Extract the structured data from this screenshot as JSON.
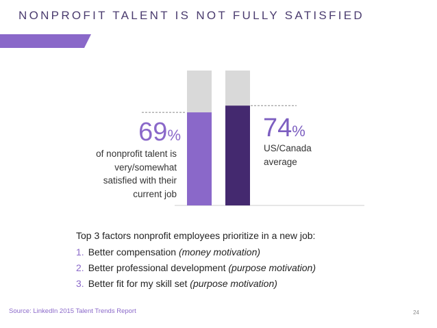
{
  "title": "NONPROFIT TALENT IS NOT FULLY SATISFIED",
  "colors": {
    "accent": "#8a68c9",
    "bar_nonprofit": "#8a68c9",
    "bar_average": "#44296f",
    "bar_remainder": "#d9d9d9",
    "title": "#4a3b6e"
  },
  "chart_data": {
    "type": "bar",
    "title": "NONPROFIT TALENT IS NOT FULLY SATISFIED",
    "categories": [
      "Nonprofit talent",
      "US/Canada average"
    ],
    "series": [
      {
        "name": "satisfied",
        "values": [
          69,
          74
        ]
      },
      {
        "name": "remainder",
        "values": [
          31,
          26
        ]
      }
    ],
    "stacked": true,
    "ylim": [
      0,
      100
    ],
    "unit": "%",
    "labels": [
      {
        "value": "69",
        "sign": "%",
        "description_lines": [
          "of nonprofit talent is",
          "very/somewhat",
          "satisfied with their",
          "current job"
        ]
      },
      {
        "value": "74",
        "sign": "%",
        "description_lines": [
          "US/Canada",
          "average"
        ]
      }
    ]
  },
  "factors": {
    "heading": "Top 3 factors nonprofit employees prioritize in a new job:",
    "items": [
      {
        "num": "1.",
        "text": "Better compensation",
        "note": "(money motivation)"
      },
      {
        "num": "2.",
        "text": "Better professional development",
        "note": "(purpose motivation)"
      },
      {
        "num": "3.",
        "text": "Better fit for my skill set",
        "note": "(purpose motivation)"
      }
    ]
  },
  "source": "Source: LinkedIn 2015 Talent Trends Report",
  "page_number": "24"
}
